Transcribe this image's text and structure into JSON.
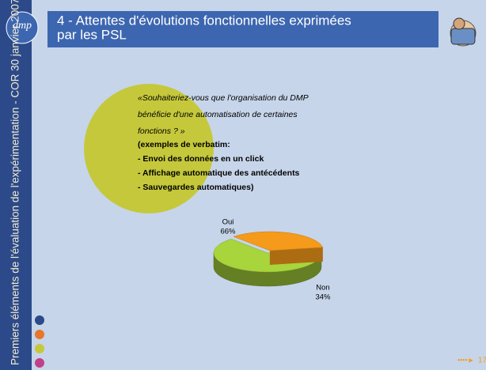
{
  "sidebar_text": "Premiers éléments de l'évaluation de l'expérimentation - COR 30 janvier 2007",
  "logo": "dmp",
  "title_lines": [
    "4 - Attentes d'évolutions fonctionnelles exprimées",
    "par les PSL"
  ],
  "question_lines": [
    "«Souhaiteriez-vous que l'organisation du DMP",
    "bénéficie d'une automatisation de certaines",
    "fonctions ? »"
  ],
  "example_lines": [
    "(exemples de verbatim:",
    "- Envoi des données en un click",
    "- Affichage automatique des antécédents",
    "- Sauvegardes automatiques)"
  ],
  "page_number": "17",
  "chart_data": {
    "type": "pie",
    "categories": [
      "Oui",
      "Non"
    ],
    "values": [
      66,
      34
    ],
    "value_labels": [
      "66%",
      "34%"
    ],
    "colors": [
      "#a8d43c",
      "#f59a1a"
    ]
  }
}
